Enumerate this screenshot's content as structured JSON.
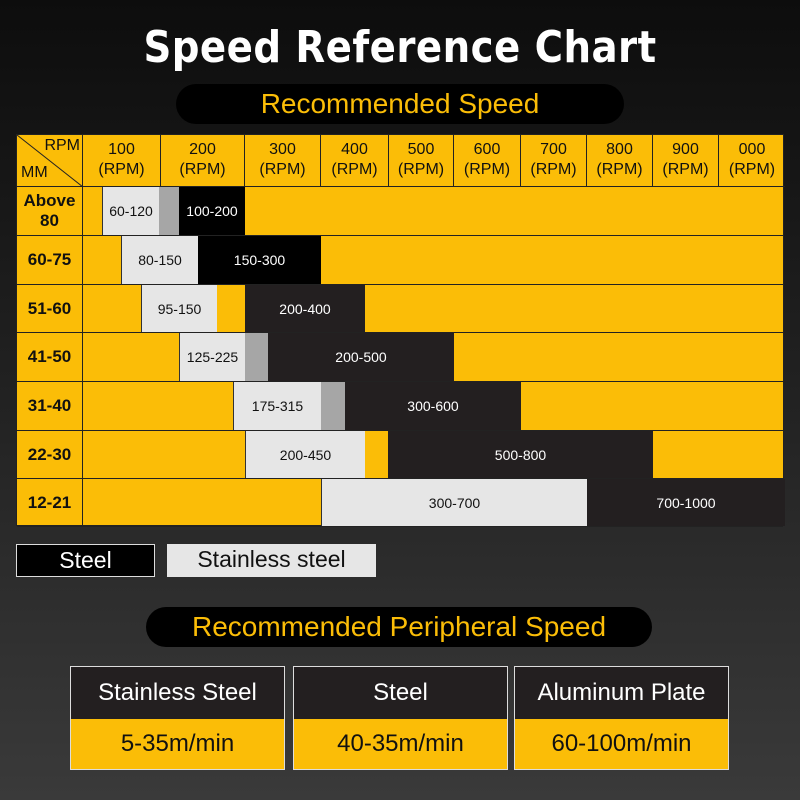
{
  "chart_data": {
    "type": "table",
    "title": "Speed Reference Chart",
    "subtitle": "Recommended Speed",
    "corner": {
      "top": "RPM",
      "bottom": "MM"
    },
    "columns": [
      "100",
      "200",
      "300",
      "400",
      "500",
      "600",
      "700",
      "800",
      "900",
      "000"
    ],
    "column_unit": "(RPM)",
    "rows": [
      {
        "label": "Above 80",
        "stainless": "60-120",
        "steel": "100-200"
      },
      {
        "label": "60-75",
        "stainless": "80-150",
        "steel": "150-300"
      },
      {
        "label": "51-60",
        "stainless": "95-150",
        "steel": "200-400"
      },
      {
        "label": "41-50",
        "stainless": "125-225",
        "steel": "200-500"
      },
      {
        "label": "31-40",
        "stainless": "175-315",
        "steel": "300-600"
      },
      {
        "label": "22-30",
        "stainless": "200-450",
        "steel": "500-800"
      },
      {
        "label": "12-21",
        "stainless": "300-700",
        "steel": "700-1000"
      }
    ],
    "legend": [
      {
        "name": "Steel",
        "color": "#000000"
      },
      {
        "name": "Stainless steel",
        "color": "#e6e6e6"
      }
    ],
    "background_color": "#fbbd07"
  },
  "peripheral": {
    "title": "Recommended Peripheral Speed",
    "cards": [
      {
        "material": "Stainless Steel",
        "speed": "5-35m/min"
      },
      {
        "material": "Steel",
        "speed": "40-35m/min"
      },
      {
        "material": "Aluminum Plate",
        "speed": "60-100m/min"
      }
    ]
  }
}
